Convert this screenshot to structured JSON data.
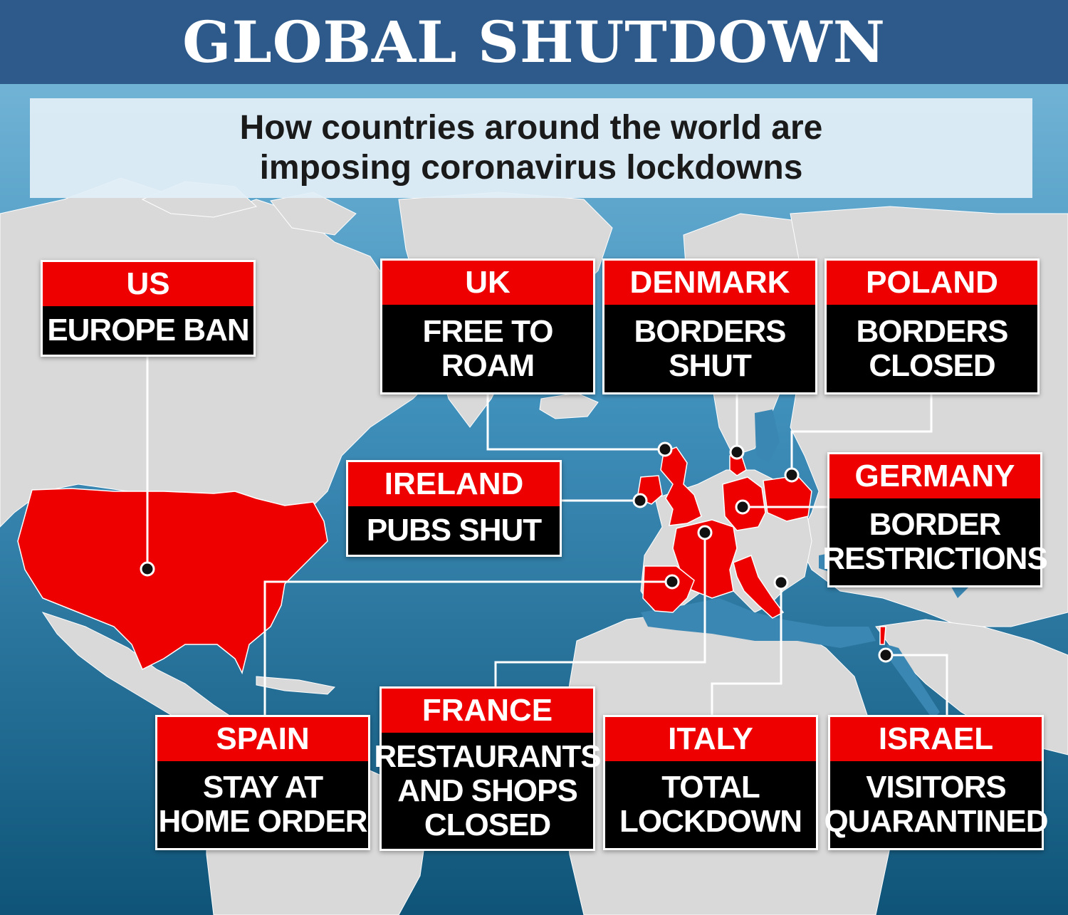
{
  "header": {
    "title": "GLOBAL SHUTDOWN",
    "subtitle_lines": [
      "How countries around the world are",
      "imposing coronavirus lockdowns"
    ]
  },
  "colors": {
    "header_bg": "#2d5a8a",
    "ocean_light": "#6fb0d2",
    "ocean_dark": "#145c80",
    "land": "#d9d9d9",
    "highlight_country": "#ee0000",
    "card_head": "#ee0000",
    "card_body": "#000000",
    "connector": "#ffffff"
  },
  "callouts": [
    {
      "country": "US",
      "status_lines": [
        "EUROPE BAN"
      ]
    },
    {
      "country": "UK",
      "status_lines": [
        "FREE TO",
        "ROAM"
      ]
    },
    {
      "country": "DENMARK",
      "status_lines": [
        "BORDERS",
        "SHUT"
      ]
    },
    {
      "country": "POLAND",
      "status_lines": [
        "BORDERS",
        "CLOSED"
      ]
    },
    {
      "country": "IRELAND",
      "status_lines": [
        "PUBS SHUT"
      ]
    },
    {
      "country": "GERMANY",
      "status_lines": [
        "BORDER",
        "RESTRICTIONS"
      ]
    },
    {
      "country": "SPAIN",
      "status_lines": [
        "STAY AT",
        "HOME ORDER"
      ]
    },
    {
      "country": "FRANCE",
      "status_lines": [
        "RESTAURANTS",
        "AND SHOPS",
        "CLOSED"
      ]
    },
    {
      "country": "ITALY",
      "status_lines": [
        "TOTAL",
        "LOCKDOWN"
      ]
    },
    {
      "country": "ISRAEL",
      "status_lines": [
        "VISITORS",
        "QUARANTINED"
      ]
    }
  ]
}
